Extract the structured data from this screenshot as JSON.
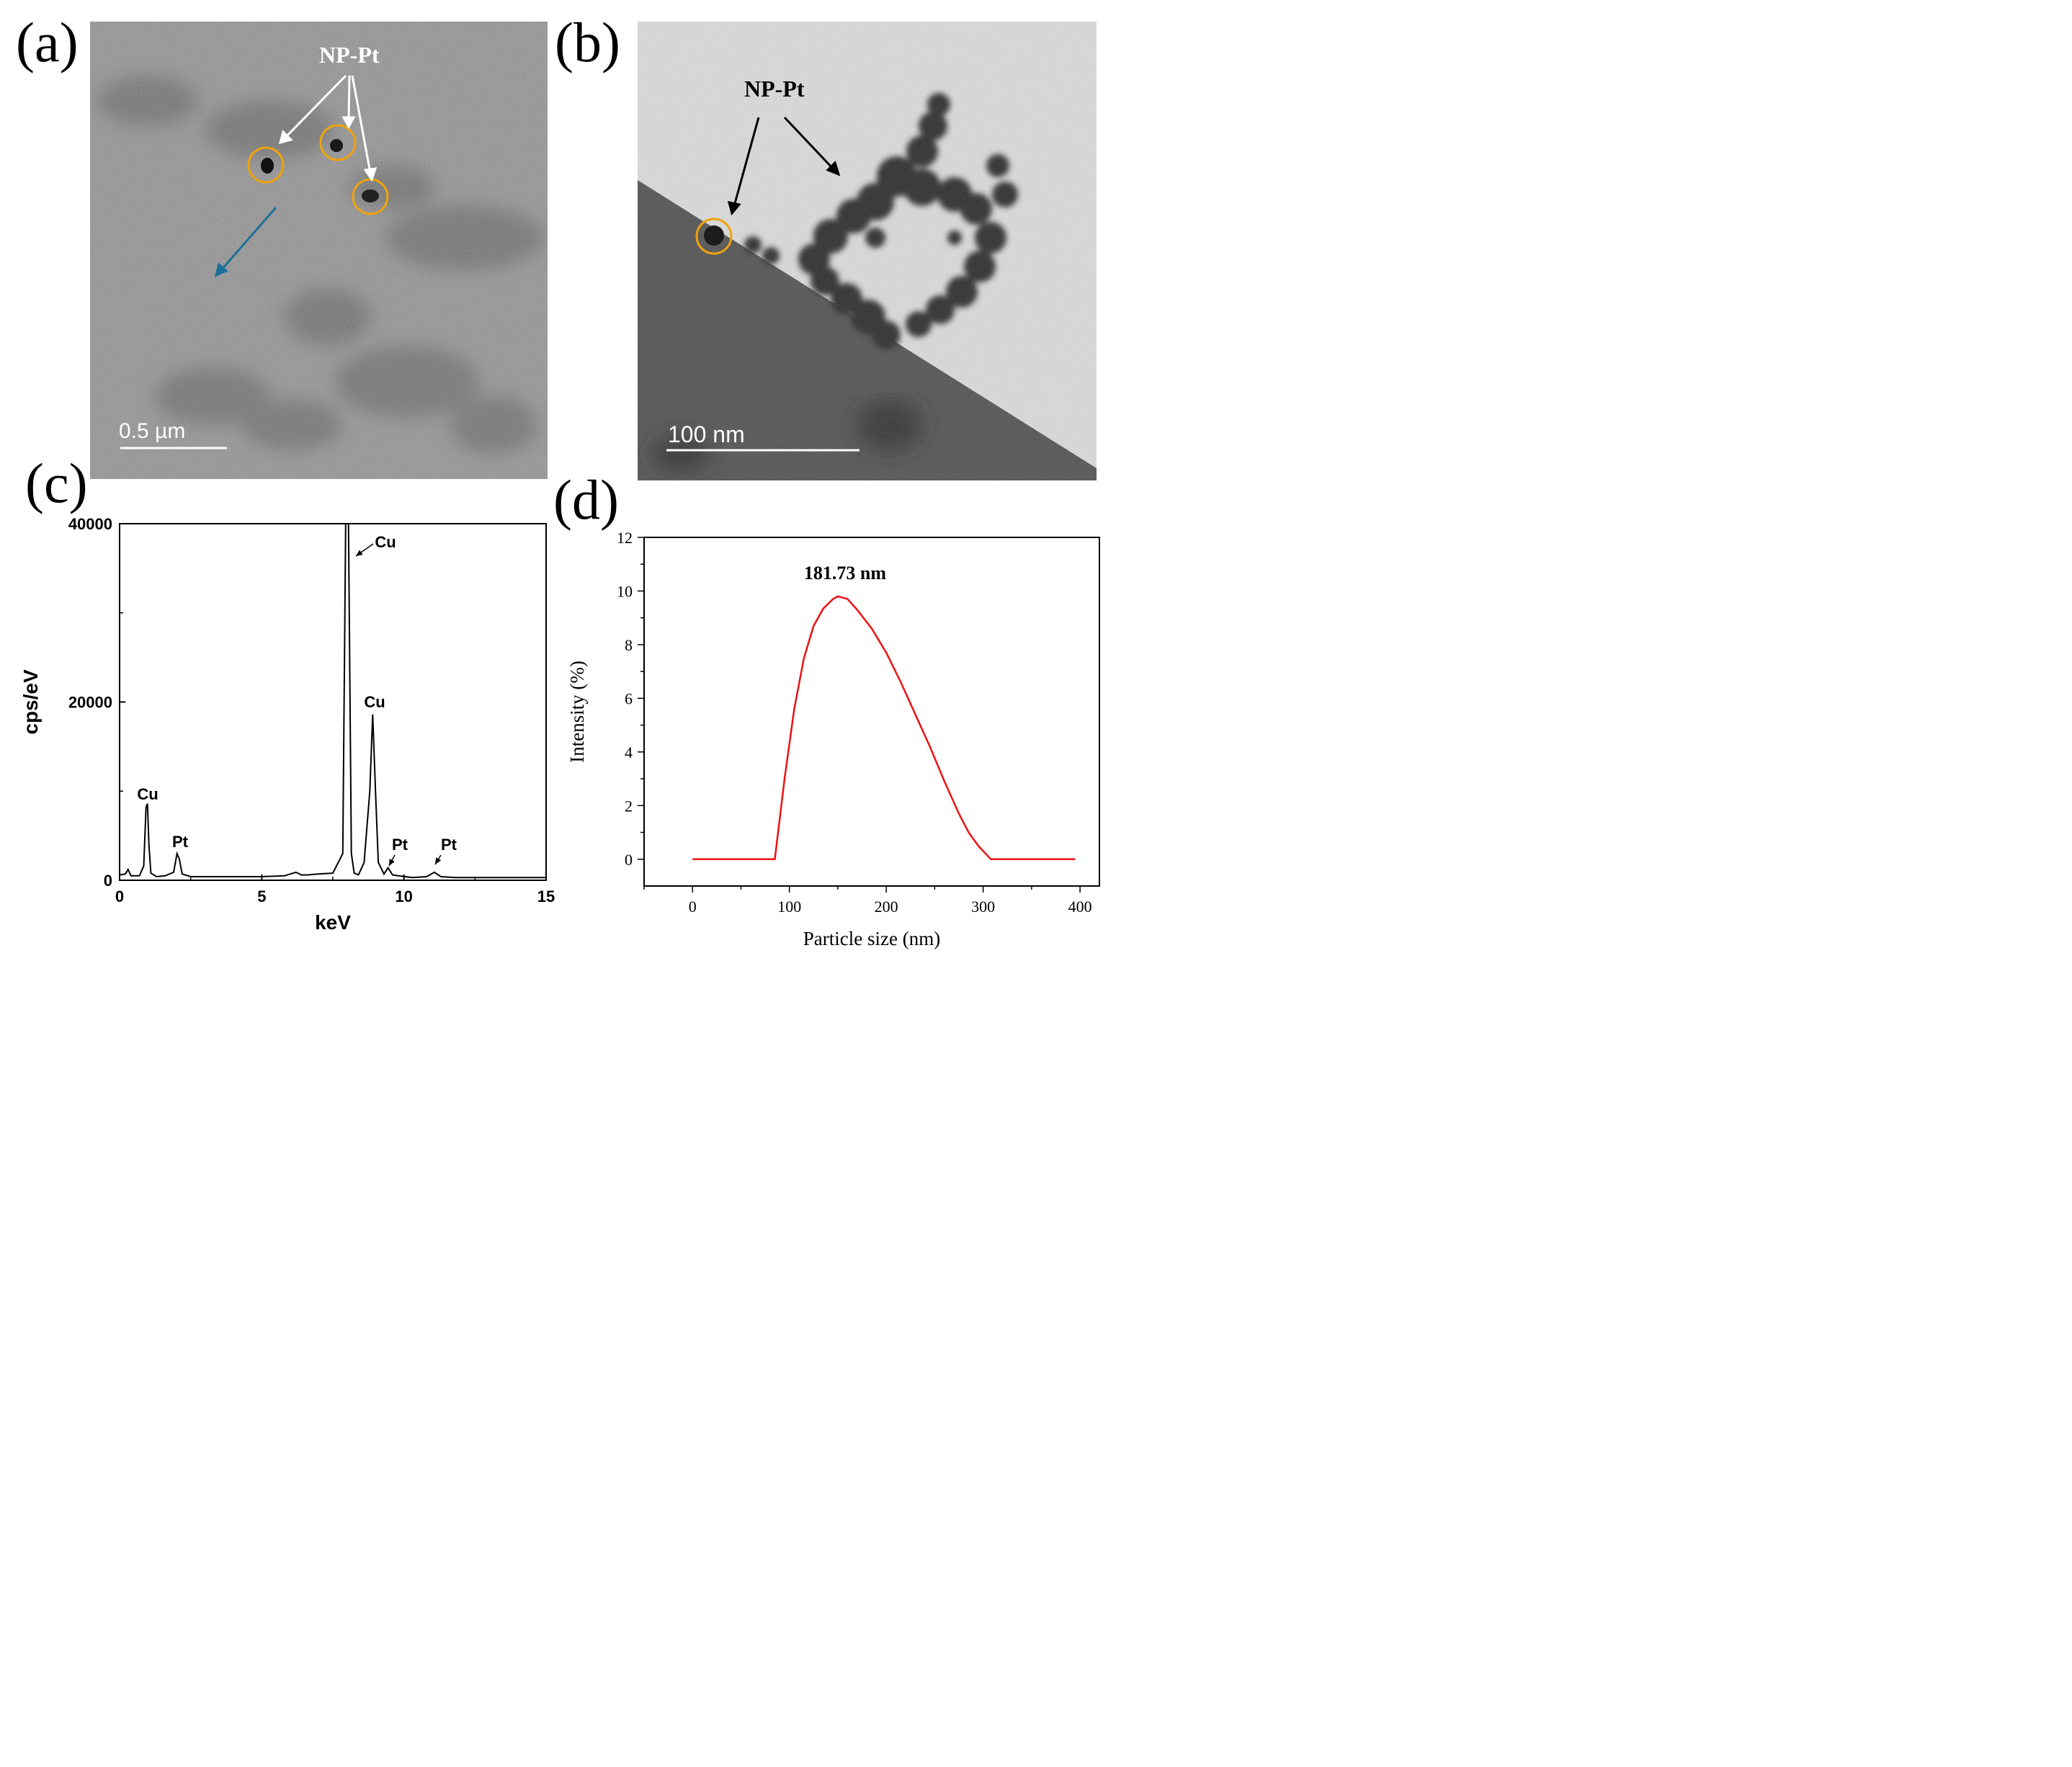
{
  "panels": {
    "a": {
      "letter": "(a)",
      "callout": "NP-Pt",
      "scalebar_label": "0.5 µm"
    },
    "b": {
      "letter": "(b)",
      "callout": "NP-Pt",
      "scalebar_label": "100 nm"
    },
    "c": {
      "letter": "(c)"
    },
    "d": {
      "letter": "(d)"
    }
  },
  "colors": {
    "circle": "#f0a30a",
    "arrow_white": "#ffffff",
    "arrow_teal": "#1f6f9a",
    "line_red": "#ee1111",
    "line_black": "#000000"
  },
  "chart_data": [
    {
      "panel": "c",
      "type": "line",
      "xlabel": "keV",
      "ylabel": "cps/eV",
      "xlim": [
        0,
        15
      ],
      "ylim": [
        0,
        40000
      ],
      "xticks": [
        "0",
        "5",
        "10",
        "15"
      ],
      "yticks": [
        "0",
        "20000",
        "40000"
      ],
      "series": [
        {
          "x": [
            0.0,
            0.2,
            0.3,
            0.4,
            0.5,
            0.7,
            0.85,
            0.93,
            0.98,
            1.03,
            1.1,
            1.3,
            1.6,
            1.9,
            2.02,
            2.1,
            2.2,
            2.5,
            3.0,
            4.0,
            5.0,
            5.8,
            6.2,
            6.4,
            6.6,
            7.0,
            7.5,
            7.85,
            7.95,
            8.05,
            8.15,
            8.25,
            8.4,
            8.6,
            8.8,
            8.9,
            9.0,
            9.1,
            9.3,
            9.44,
            9.6,
            9.8,
            10.3,
            10.8,
            11.07,
            11.3,
            11.8,
            13.0,
            15.0
          ],
          "y": [
            600,
            700,
            1200,
            500,
            500,
            500,
            1600,
            8200,
            8600,
            4000,
            800,
            400,
            500,
            900,
            3000,
            2400,
            700,
            400,
            400,
            400,
            400,
            500,
            900,
            600,
            600,
            700,
            800,
            3000,
            40000,
            40000,
            3000,
            800,
            600,
            2000,
            10000,
            18600,
            10000,
            2000,
            700,
            1400,
            600,
            500,
            300,
            400,
            900,
            400,
            300,
            300,
            300
          ]
        }
      ],
      "annotations": [
        "Cu",
        "Cu",
        "Cu",
        "Pt",
        "Pt",
        "Pt"
      ]
    },
    {
      "panel": "d",
      "type": "line",
      "xlabel": "Particle size (nm)",
      "ylabel": "Intensity (%)",
      "xlim": [
        -50,
        420
      ],
      "ylim": [
        -1,
        12
      ],
      "xticks": [
        "0",
        "100",
        "200",
        "300",
        "400"
      ],
      "yticks": [
        "0",
        "2",
        "4",
        "6",
        "8",
        "10",
        "12"
      ],
      "annotation": "181.73 nm",
      "series": [
        {
          "x": [
            0,
            85,
            95,
            105,
            115,
            125,
            135,
            145,
            150,
            160,
            170,
            185,
            200,
            215,
            230,
            245,
            260,
            275,
            285,
            295,
            308,
            320,
            395
          ],
          "y": [
            0,
            0,
            3.0,
            5.6,
            7.5,
            8.7,
            9.35,
            9.7,
            9.8,
            9.7,
            9.3,
            8.6,
            7.7,
            6.6,
            5.4,
            4.2,
            2.9,
            1.7,
            1.0,
            0.5,
            0,
            0,
            0
          ]
        }
      ]
    }
  ]
}
